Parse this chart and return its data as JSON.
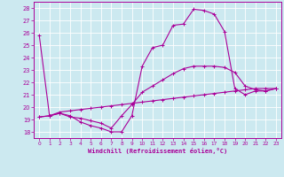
{
  "xlabel": "Windchill (Refroidissement éolien,°C)",
  "xlim": [
    -0.5,
    23.5
  ],
  "ylim": [
    17.5,
    28.5
  ],
  "xticks": [
    0,
    1,
    2,
    3,
    4,
    5,
    6,
    7,
    8,
    9,
    10,
    11,
    12,
    13,
    14,
    15,
    16,
    17,
    18,
    19,
    20,
    21,
    22,
    23
  ],
  "yticks": [
    18,
    19,
    20,
    21,
    22,
    23,
    24,
    25,
    26,
    27,
    28
  ],
  "background_color": "#cce9f0",
  "grid_color": "#ffffff",
  "line_color": "#aa0099",
  "line1_x": [
    0,
    1,
    2,
    3,
    4,
    5,
    6,
    7,
    8,
    9,
    10,
    11,
    12,
    13,
    14,
    15,
    16,
    17,
    18,
    19,
    20,
    21,
    22,
    23
  ],
  "line1_y": [
    25.8,
    19.3,
    19.5,
    19.3,
    18.8,
    18.5,
    18.3,
    18.0,
    18.0,
    19.3,
    23.3,
    24.8,
    25.0,
    26.6,
    26.7,
    27.9,
    27.8,
    27.5,
    26.1,
    21.5,
    21.0,
    21.3,
    21.3,
    21.5
  ],
  "line2_x": [
    0,
    1,
    2,
    3,
    4,
    5,
    6,
    7,
    8,
    9,
    10,
    11,
    12,
    13,
    14,
    15,
    16,
    17,
    18,
    19,
    20,
    21,
    22,
    23
  ],
  "line2_y": [
    19.2,
    19.3,
    19.5,
    19.2,
    19.1,
    18.9,
    18.7,
    18.3,
    19.3,
    20.2,
    21.2,
    21.7,
    22.2,
    22.7,
    23.1,
    23.3,
    23.3,
    23.3,
    23.2,
    22.8,
    21.7,
    21.4,
    21.3,
    21.5
  ],
  "line3_x": [
    0,
    1,
    2,
    3,
    4,
    5,
    6,
    7,
    8,
    9,
    10,
    11,
    12,
    13,
    14,
    15,
    16,
    17,
    18,
    19,
    20,
    21,
    22,
    23
  ],
  "line3_y": [
    19.2,
    19.3,
    19.6,
    19.7,
    19.8,
    19.9,
    20.0,
    20.1,
    20.2,
    20.3,
    20.4,
    20.5,
    20.6,
    20.7,
    20.8,
    20.9,
    21.0,
    21.1,
    21.2,
    21.3,
    21.4,
    21.5,
    21.5,
    21.5
  ]
}
